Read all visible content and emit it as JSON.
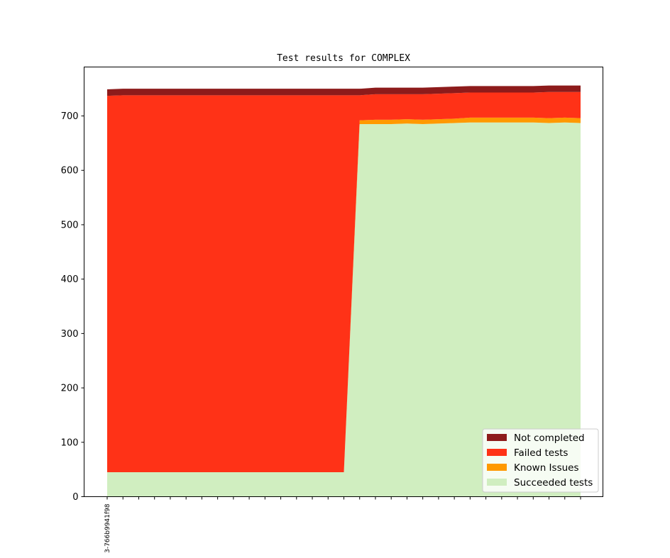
{
  "chart_data": {
    "type": "area",
    "stacked": true,
    "title": "Test results for COMPLEX",
    "xlabel": "",
    "ylabel": "",
    "ylim": [
      0,
      790
    ],
    "yticks": [
      0,
      100,
      200,
      300,
      400,
      500,
      600,
      700
    ],
    "xtick_labels": [
      "3-766b9941f98"
    ],
    "grid": false,
    "legend_position": "lower-right",
    "series": [
      {
        "name": "Succeeded tests",
        "color": "#d0eec0",
        "values": [
          45,
          45,
          45,
          45,
          45,
          45,
          45,
          45,
          45,
          45,
          45,
          45,
          45,
          45,
          45,
          45,
          685,
          685,
          685,
          686,
          685,
          686,
          687,
          688,
          688,
          688,
          688,
          688,
          687,
          688,
          687
        ]
      },
      {
        "name": "Known Issues",
        "color": "#ff9900",
        "values": [
          0,
          0,
          0,
          0,
          0,
          0,
          0,
          0,
          0,
          0,
          0,
          0,
          0,
          0,
          0,
          0,
          7,
          8,
          8,
          8,
          8,
          8,
          8,
          9,
          9,
          9,
          9,
          9,
          9,
          9,
          9
        ]
      },
      {
        "name": "Failed tests",
        "color": "#ff3217",
        "values": [
          692,
          693,
          693,
          693,
          693,
          693,
          693,
          693,
          693,
          693,
          693,
          693,
          693,
          693,
          693,
          693,
          46,
          47,
          47,
          46,
          47,
          47,
          47,
          46,
          46,
          46,
          46,
          46,
          48,
          47,
          48
        ]
      },
      {
        "name": "Not completed",
        "color": "#8d1b1b",
        "values": [
          12,
          12,
          12,
          12,
          12,
          12,
          12,
          12,
          12,
          12,
          12,
          12,
          12,
          12,
          12,
          12,
          12,
          12,
          12,
          12,
          12,
          12,
          12,
          12,
          12,
          12,
          12,
          12,
          12,
          12,
          12
        ]
      }
    ]
  }
}
